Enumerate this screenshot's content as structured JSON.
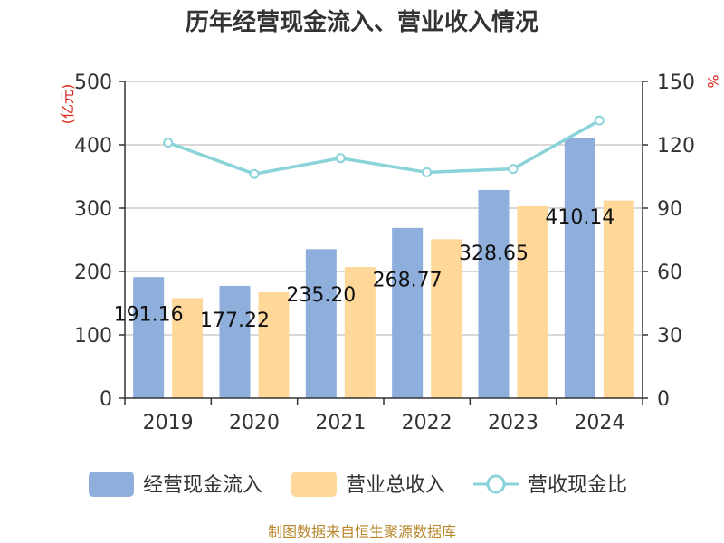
{
  "chart_data": {
    "type": "bar",
    "title": "历年经营现金流入、营业收入情况",
    "categories": [
      "2019",
      "2020",
      "2021",
      "2022",
      "2023",
      "2024"
    ],
    "series": [
      {
        "name": "经营现金流入",
        "kind": "bar",
        "axis": "left",
        "color": "#8eaedc",
        "values": [
          191.16,
          177.22,
          235.2,
          268.77,
          328.65,
          410.14
        ]
      },
      {
        "name": "营业总收入",
        "kind": "bar",
        "axis": "left",
        "color": "#ffd899",
        "values": [
          158,
          167,
          207,
          251,
          303,
          312
        ]
      },
      {
        "name": "营收现金比",
        "kind": "line",
        "axis": "right",
        "color": "#8ad3d8",
        "values": [
          121,
          106.2,
          113.7,
          107,
          108.6,
          131.5
        ]
      }
    ],
    "bar_labels": [
      "191.16",
      "177.22",
      "235.20",
      "268.77",
      "328.65",
      "410.14"
    ],
    "y_left": {
      "unit": "(亿元)",
      "min": 0,
      "max": 500,
      "ticks": [
        "0",
        "100",
        "200",
        "300",
        "400",
        "500"
      ]
    },
    "y_right": {
      "unit": "%",
      "min": 0,
      "max": 150,
      "ticks": [
        "0",
        "30",
        "60",
        "90",
        "120",
        "150"
      ]
    },
    "grid": true,
    "legend_position": "bottom"
  },
  "source_text": "制图数据来自恒生聚源数据库"
}
